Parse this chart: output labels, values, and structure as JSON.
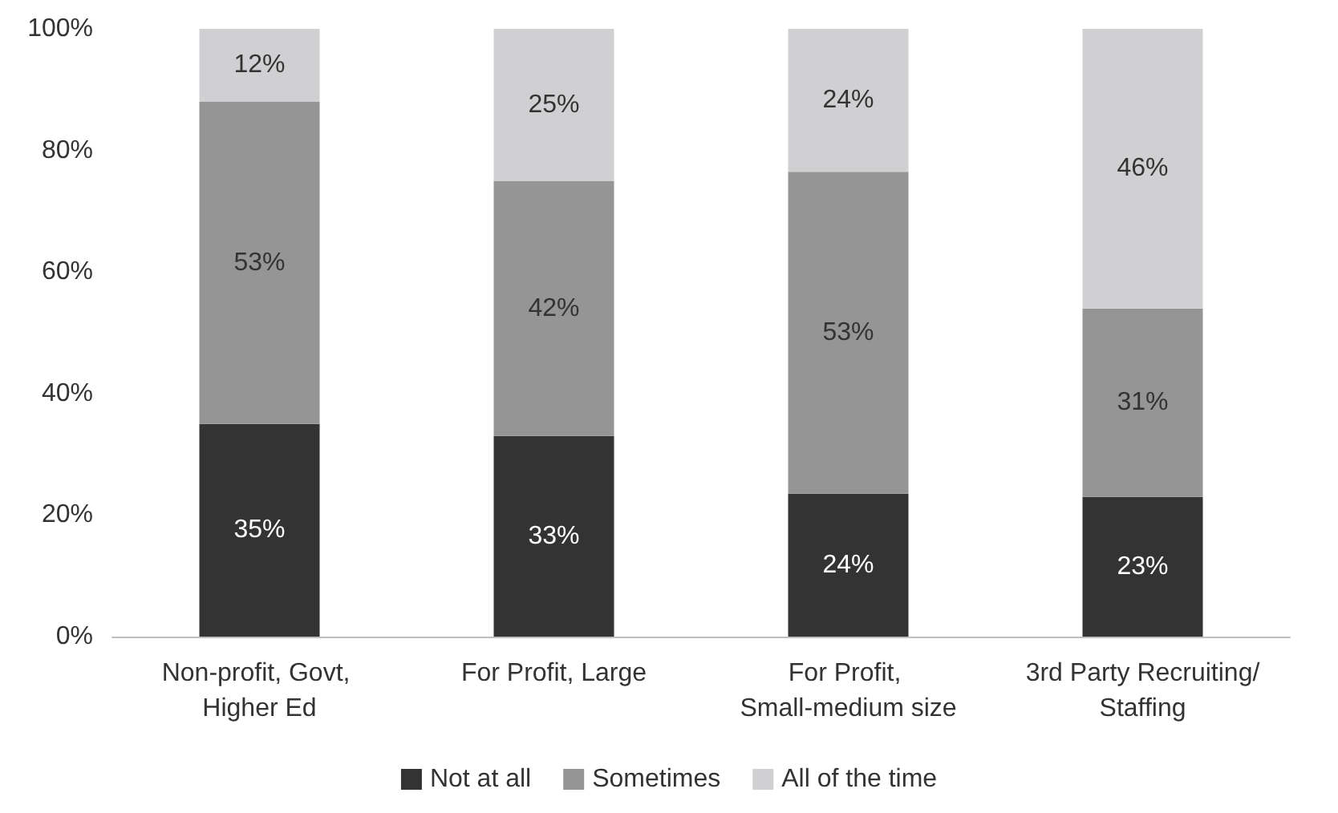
{
  "chart_data": {
    "type": "bar",
    "stacked": true,
    "categories": [
      "Non-profit, Govt, Higher Ed",
      "For Profit, Large",
      "For Profit, Small-medium size",
      "3rd Party Recruiting/Staffing"
    ],
    "series": [
      {
        "name": "Not at all",
        "color": "#333333",
        "values": [
          35,
          33,
          23.5,
          23
        ],
        "value_labels": [
          "35%",
          "33%",
          "24%",
          "23%"
        ]
      },
      {
        "name": "Sometimes",
        "color": "#959595",
        "values": [
          53,
          42,
          53,
          31
        ],
        "value_labels": [
          "53%",
          "42%",
          "53%",
          "31%"
        ]
      },
      {
        "name": "All of the time",
        "color": "#d0d0d2",
        "values": [
          12,
          25,
          23.5,
          46
        ],
        "value_labels": [
          "12%",
          "25%",
          "24%",
          "46%"
        ]
      }
    ],
    "ylim": [
      0,
      100
    ],
    "yticks": [
      {
        "value": 0,
        "label": "0%"
      },
      {
        "value": 20,
        "label": "20%"
      },
      {
        "value": 40,
        "label": "40%"
      },
      {
        "value": 60,
        "label": "60%"
      },
      {
        "value": 80,
        "label": "80%"
      },
      {
        "value": 100,
        "label": "100%"
      }
    ],
    "grid": false,
    "legend": "bottom"
  }
}
